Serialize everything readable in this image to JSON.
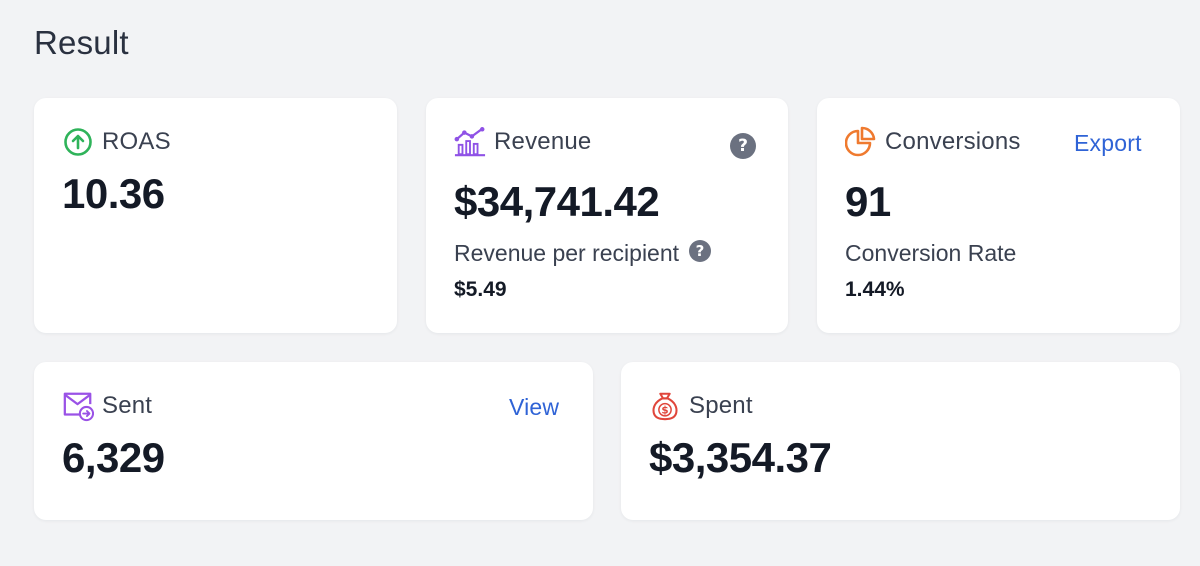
{
  "page": {
    "title": "Result"
  },
  "cards": {
    "roas": {
      "label": "ROAS",
      "value": "10.36",
      "icon": "arrow-up-circle-icon",
      "color": "#2fb35a"
    },
    "revenue": {
      "label": "Revenue",
      "value": "$34,741.42",
      "icon": "bar-chart-trend-icon",
      "color": "#8f52e6",
      "help_glyph": "?",
      "sub_label": "Revenue per recipient",
      "sub_value": "$5.49"
    },
    "conversions": {
      "label": "Conversions",
      "value": "91",
      "icon": "pie-chart-icon",
      "color": "#ef7a2f",
      "action": "Export",
      "sub_label": "Conversion Rate",
      "sub_value": "1.44%"
    },
    "sent": {
      "label": "Sent",
      "value": "6,329",
      "icon": "mail-send-icon",
      "color": "#9a52e6",
      "action": "View"
    },
    "spent": {
      "label": "Spent",
      "value": "$3,354.37",
      "icon": "money-bag-icon",
      "color": "#e0463b"
    }
  },
  "colors": {
    "background": "#f2f3f5",
    "card": "#ffffff",
    "link": "#2f63d6",
    "help_badge": "#6b7180"
  }
}
